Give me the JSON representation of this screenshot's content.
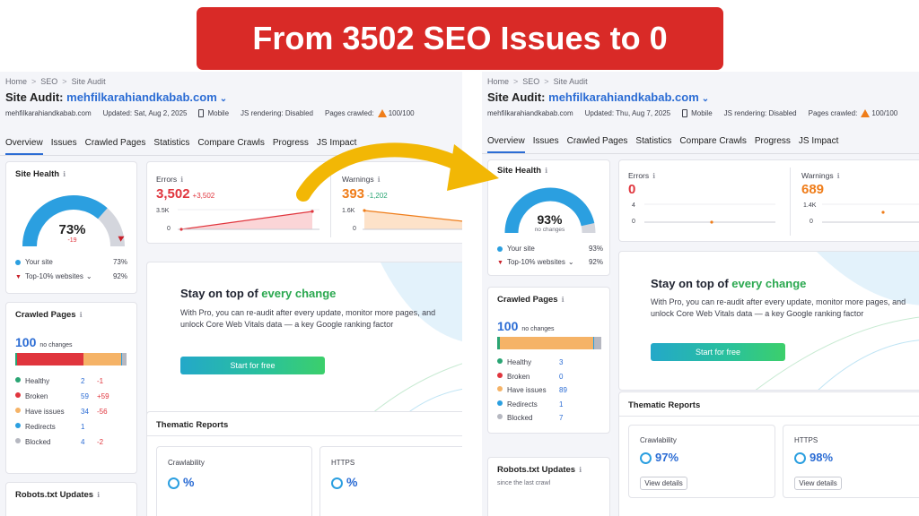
{
  "banner_title": "From 3502 SEO Issues to 0",
  "colors": {
    "banner_red": "#d92a27",
    "arrow_yellow": "#f2b705",
    "brand_blue": "#2b6cd4",
    "error_red": "#e0353d",
    "warning_orange": "#ef7d1a",
    "healthy_green": "#2aa574"
  },
  "left": {
    "breadcrumb": [
      "Home",
      "SEO",
      "Site Audit"
    ],
    "title_prefix": "Site Audit:",
    "domain": "mehfilkarahiandkabab.com",
    "meta": {
      "site": "mehfilkarahiandkabab.com",
      "updated": "Updated: Sat, Aug 2, 2025",
      "device": "Mobile",
      "js_rendering": "JS rendering: Disabled",
      "pages_crawled_label": "Pages crawled:",
      "pages_crawled_value": "100/100"
    },
    "tabs": [
      "Overview",
      "Issues",
      "Crawled Pages",
      "Statistics",
      "Compare Crawls",
      "Progress",
      "JS Impact"
    ],
    "site_health": {
      "title": "Site Health",
      "score": "73%",
      "delta": "-19",
      "score_value": 73,
      "your_site_label": "Your site",
      "your_site_value": "73%",
      "top10_label": "Top-10% websites",
      "top10_value": "92%"
    },
    "errors": {
      "label": "Errors",
      "value": "3,502",
      "delta": "+3,502",
      "axis_top": "3.5K",
      "axis_bottom": "0"
    },
    "warnings": {
      "label": "Warnings",
      "value": "393",
      "delta": "-1,202",
      "axis_top": "1.6K",
      "axis_bottom": "0"
    },
    "promo": {
      "heading_plain": "Stay on top of",
      "heading_accent": "every change",
      "body": "With Pro, you can re-audit after every update, monitor more pages, and unlock Core Web Vitals data — a key Google ranking factor",
      "button": "Start for free"
    },
    "crawled_pages": {
      "title": "Crawled Pages",
      "total": "100",
      "total_note": "no changes",
      "bar_shares": [
        0.02,
        0.59,
        0.34,
        0.01,
        0.04
      ],
      "rows": [
        {
          "label": "Healthy",
          "value": "2",
          "delta": "-1",
          "color": "#2aa574"
        },
        {
          "label": "Broken",
          "value": "59",
          "delta": "+59",
          "color": "#e0353d"
        },
        {
          "label": "Have issues",
          "value": "34",
          "delta": "-56",
          "color": "#f5b367"
        },
        {
          "label": "Redirects",
          "value": "1",
          "delta": "",
          "color": "#2b9fe0"
        },
        {
          "label": "Blocked",
          "value": "4",
          "delta": "-2",
          "color": "#b6b8c1"
        }
      ]
    },
    "thematic": {
      "title": "Thematic Reports",
      "reports": [
        {
          "label": "Crawlability",
          "value": "%"
        },
        {
          "label": "HTTPS",
          "value": "%"
        }
      ]
    },
    "robots": {
      "title": "Robots.txt Updates"
    }
  },
  "right": {
    "breadcrumb": [
      "Home",
      "SEO",
      "Site Audit"
    ],
    "title_prefix": "Site Audit:",
    "domain": "mehfilkarahiandkabab.com",
    "meta": {
      "site": "mehfilkarahiandkabab.com",
      "updated": "Updated: Thu, Aug 7, 2025",
      "device": "Mobile",
      "js_rendering": "JS rendering: Disabled",
      "pages_crawled_label": "Pages crawled:",
      "pages_crawled_value": "100/100"
    },
    "tabs": [
      "Overview",
      "Issues",
      "Crawled Pages",
      "Statistics",
      "Compare Crawls",
      "Progress",
      "JS Impact"
    ],
    "site_health": {
      "title": "Site Health",
      "score": "93%",
      "delta": "no changes",
      "score_value": 93,
      "your_site_label": "Your site",
      "your_site_value": "93%",
      "top10_label": "Top-10% websites",
      "top10_value": "92%"
    },
    "errors": {
      "label": "Errors",
      "value": "0",
      "axis_top": "4",
      "axis_bottom": "0"
    },
    "warnings": {
      "label": "Warnings",
      "value": "689",
      "axis_top": "1.4K",
      "axis_bottom": "0"
    },
    "promo": {
      "heading_plain": "Stay on top of",
      "heading_accent": "every change",
      "body": "With Pro, you can re-audit after every update, monitor more pages, and unlock Core Web Vitals data — a key Google ranking factor",
      "button": "Start for free"
    },
    "crawled_pages": {
      "title": "Crawled Pages",
      "total": "100",
      "total_note": "no changes",
      "bar_shares": [
        0.03,
        0.0,
        0.89,
        0.01,
        0.07
      ],
      "rows": [
        {
          "label": "Healthy",
          "value": "3",
          "color": "#2aa574"
        },
        {
          "label": "Broken",
          "value": "0",
          "color": "#e0353d"
        },
        {
          "label": "Have issues",
          "value": "89",
          "color": "#f5b367"
        },
        {
          "label": "Redirects",
          "value": "1",
          "color": "#2b9fe0"
        },
        {
          "label": "Blocked",
          "value": "7",
          "color": "#b6b8c1"
        }
      ]
    },
    "thematic": {
      "title": "Thematic Reports",
      "reports": [
        {
          "label": "Crawlability",
          "value": "97%",
          "button": "View details"
        },
        {
          "label": "HTTPS",
          "value": "98%",
          "button": "View details"
        }
      ]
    },
    "robots": {
      "title": "Robots.txt Updates",
      "note": "since the last crawl"
    }
  }
}
